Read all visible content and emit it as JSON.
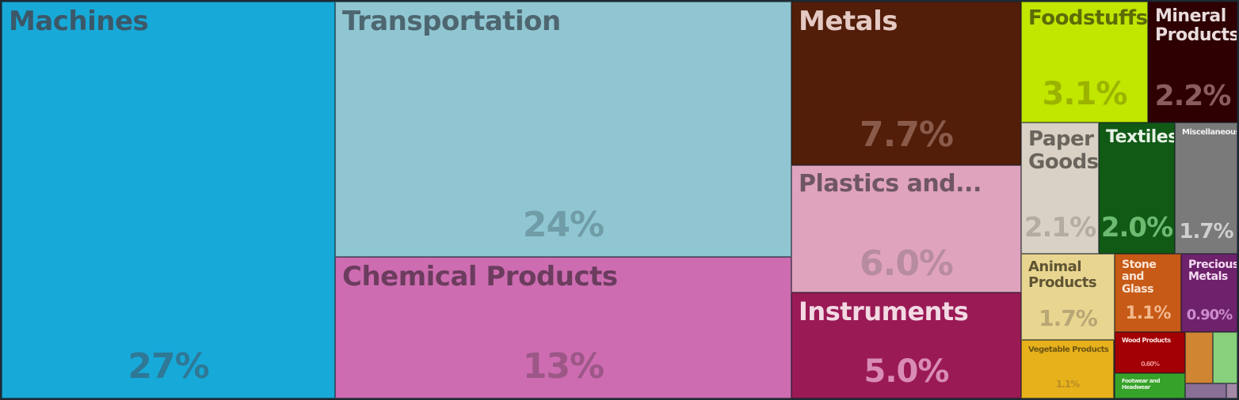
{
  "chart_data": {
    "type": "treemap",
    "unit": "%",
    "items": [
      {
        "label": "Machines",
        "value_label": "27%",
        "value": 27,
        "color": "#17a9d8"
      },
      {
        "label": "Transportation",
        "value_label": "24%",
        "value": 24,
        "color": "#8fc6d1"
      },
      {
        "label": "Chemical Products",
        "value_label": "13%",
        "value": 13,
        "color": "#cd6cb0"
      },
      {
        "label": "Metals",
        "value_label": "7.7%",
        "value": 7.7,
        "color": "#521d09"
      },
      {
        "label": "Plastics and...",
        "value_label": "6.0%",
        "value": 6.0,
        "color": "#e0a3be"
      },
      {
        "label": "Instruments",
        "value_label": "5.0%",
        "value": 5.0,
        "color": "#9a1a56"
      },
      {
        "label": "Foodstuffs",
        "value_label": "3.1%",
        "value": 3.1,
        "color": "#c1e600"
      },
      {
        "label": "Mineral Products",
        "value_label": "2.2%",
        "value": 2.2,
        "color": "#2e0002"
      },
      {
        "label": "Paper Goods",
        "value_label": "2.1%",
        "value": 2.1,
        "color": "#d9d2c4"
      },
      {
        "label": "Textiles",
        "value_label": "2.0%",
        "value": 2.0,
        "color": "#115a16"
      },
      {
        "label": "Miscellaneous",
        "value_label": "1.7%",
        "value": 1.7,
        "color": "#7a7a7a"
      },
      {
        "label": "Animal Products",
        "value_label": "1.7%",
        "value": 1.7,
        "color": "#e8d590"
      },
      {
        "label": "Stone and Glass",
        "value_label": "1.1%",
        "value": 1.1,
        "color": "#c65a16"
      },
      {
        "label": "Precious Metals",
        "value_label": "0.90%",
        "value": 0.9,
        "color": "#6d226b"
      },
      {
        "label": "Vegetable Products",
        "value_label": "1.1%",
        "value": 1.1,
        "color": "#e6b11b"
      },
      {
        "label": "Wood Products",
        "value_label": "0.60%",
        "value": 0.6,
        "color": "#a20004"
      },
      {
        "label": "Footwear and Headwear",
        "value_label": "",
        "value": 0.4,
        "color": "#37a229"
      },
      {
        "label": "",
        "value_label": "",
        "value": 0.25,
        "color": "#d08533"
      },
      {
        "label": "",
        "value_label": "",
        "value": 0.2,
        "color": "#88d07b"
      },
      {
        "label": "",
        "value_label": "",
        "value": 0.12,
        "color": "#8a6f96"
      },
      {
        "label": "",
        "value_label": "",
        "value": 0.05,
        "color": "#a58aa8"
      }
    ]
  }
}
